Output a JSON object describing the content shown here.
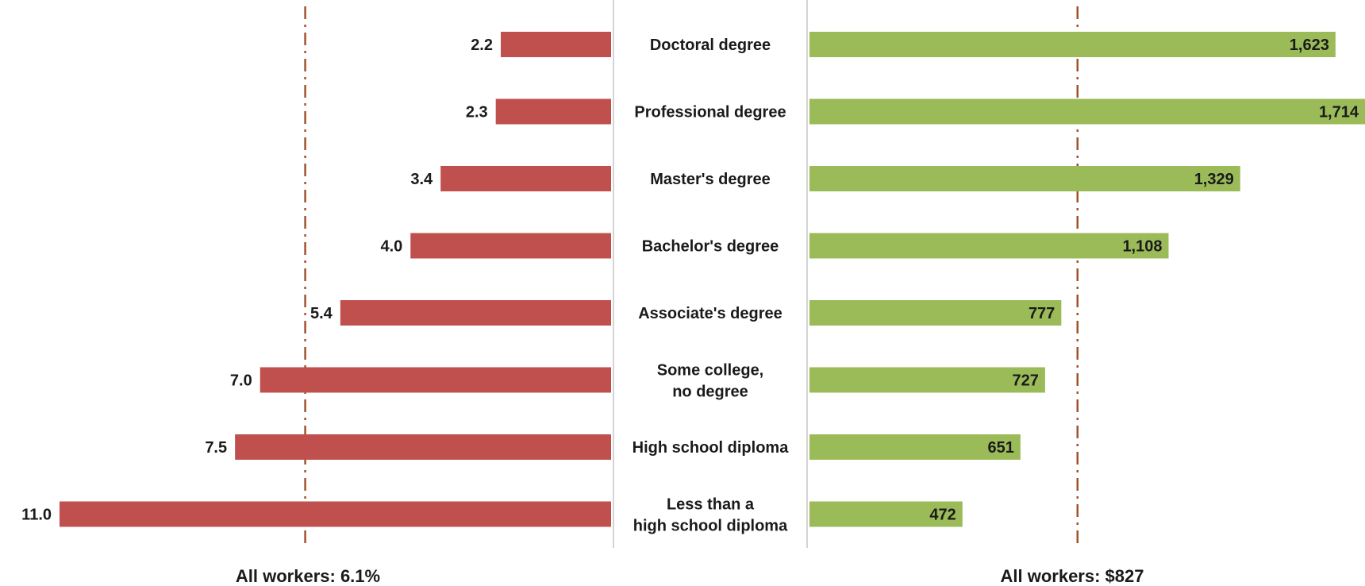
{
  "chart_data": [
    {
      "type": "bar",
      "orientation": "horizontal",
      "direction": "leftward",
      "categories": [
        "Doctoral degree",
        "Professional degree",
        "Master's degree",
        "Bachelor's degree",
        "Associate's degree",
        "Some college, no degree",
        "High school diploma",
        "Less than a high school diploma"
      ],
      "values": [
        2.2,
        2.3,
        3.4,
        4.0,
        5.4,
        7.0,
        7.5,
        11.0
      ],
      "value_labels": [
        "2.2",
        "2.3",
        "3.4",
        "4.0",
        "5.4",
        "7.0",
        "7.5",
        "11.0"
      ],
      "xlim": [
        0,
        11.0
      ],
      "reference_line": {
        "value": 6.1,
        "label": "All workers: 6.1%"
      },
      "color": "#c0504d",
      "grid": false,
      "title": "",
      "xlabel": "",
      "ylabel": ""
    },
    {
      "type": "bar",
      "orientation": "horizontal",
      "direction": "rightward",
      "categories": [
        "Doctoral degree",
        "Professional degree",
        "Master's degree",
        "Bachelor's degree",
        "Associate's degree",
        "Some college, no degree",
        "High school diploma",
        "Less than a high school diploma"
      ],
      "values": [
        1623,
        1714,
        1329,
        1108,
        777,
        727,
        651,
        472
      ],
      "value_labels": [
        "1,623",
        "1,714",
        "1,329",
        "1,108",
        "777",
        "727",
        "651",
        "472"
      ],
      "xlim": [
        0,
        1714
      ],
      "reference_line": {
        "value": 827,
        "label": "All workers: $827"
      },
      "color": "#9bbb59",
      "grid": false,
      "title": "",
      "xlabel": "",
      "ylabel": ""
    }
  ],
  "category_labels": [
    [
      "Doctoral degree"
    ],
    [
      "Professional degree"
    ],
    [
      "Master's degree"
    ],
    [
      "Bachelor's degree"
    ],
    [
      "Associate's degree"
    ],
    [
      "Some college,",
      "no degree"
    ],
    [
      "High school diploma"
    ],
    [
      "Less than a",
      "high school diploma"
    ]
  ],
  "colors": {
    "unemployment_bar": "#c0504d",
    "earnings_bar": "#9bbb59",
    "reference_line": "#a0522d",
    "divider": "#cfcfcf"
  }
}
